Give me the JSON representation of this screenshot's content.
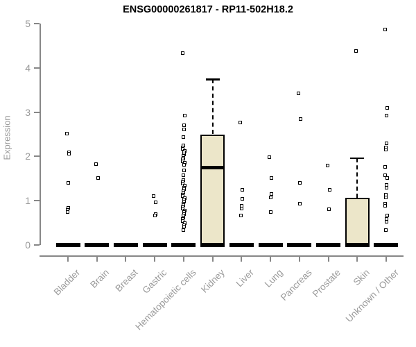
{
  "chart": {
    "title": "ENSG00000261817 - RP11-502H18.2",
    "ylabel": "Expression"
  },
  "chart_data": {
    "type": "boxplot",
    "title": "ENSG00000261817 - RP11-502H18.2",
    "xlabel": "",
    "ylabel": "Expression",
    "ylim": [
      0,
      5
    ],
    "yticks": [
      "0",
      "1",
      "2",
      "3",
      "4",
      "5"
    ],
    "grid": false,
    "marker": "open-square",
    "colors": {
      "box_fill": "#ECE6C9",
      "box_border": "#000000",
      "axis": "#878787",
      "tick_label": "#9a9a9a",
      "title": "#000000",
      "point": "#000000"
    },
    "categories": [
      {
        "label": "Bladder",
        "median": 0,
        "box": null,
        "points": [
          2.52,
          2.1,
          2.06,
          1.41,
          0.84,
          0.79,
          0.74
        ]
      },
      {
        "label": "Brain",
        "median": 0,
        "box": null,
        "points": [
          1.83,
          1.52
        ]
      },
      {
        "label": "Breast",
        "median": 0,
        "box": null,
        "points": []
      },
      {
        "label": "Gastric",
        "median": 0,
        "box": null,
        "points": [
          1.11,
          0.96,
          0.7,
          0.66
        ]
      },
      {
        "label": "Hematopoietic cells",
        "median": 0,
        "box": null,
        "points": [
          4.33,
          2.92,
          2.71,
          2.61,
          2.43,
          2.25,
          2.21,
          2.17,
          2.13,
          2.09,
          2.05,
          2.01,
          1.97,
          1.93,
          1.89,
          1.85,
          1.81,
          1.69,
          1.57,
          1.46,
          1.42,
          1.38,
          1.34,
          1.3,
          1.26,
          1.22,
          1.18,
          1.14,
          1.1,
          1.06,
          1.02,
          0.98,
          0.94,
          0.9,
          0.86,
          0.82,
          0.78,
          0.74,
          0.7,
          0.66,
          0.62,
          0.58,
          0.54,
          0.5,
          0.45,
          0.41,
          0.33
        ]
      },
      {
        "label": "Kidney",
        "median": 1.75,
        "box": {
          "q1": 0,
          "q3": 2.5,
          "whisker_high": 3.74
        },
        "points": []
      },
      {
        "label": "Liver",
        "median": 0,
        "box": null,
        "points": [
          2.76,
          1.24,
          1.05,
          0.89,
          0.82,
          0.67
        ]
      },
      {
        "label": "Lung",
        "median": 0,
        "box": null,
        "points": [
          1.98,
          1.52,
          1.15,
          1.08,
          0.75
        ]
      },
      {
        "label": "Pancreas",
        "median": 0,
        "box": null,
        "points": [
          3.42,
          2.85,
          1.41,
          0.94
        ]
      },
      {
        "label": "Prostate",
        "median": 0,
        "box": null,
        "points": [
          1.79,
          1.25,
          0.8
        ]
      },
      {
        "label": "Skin",
        "median": 0,
        "box": {
          "q1": 0,
          "q3": 1.07,
          "whisker_high": 1.96
        },
        "points": [
          4.38
        ]
      },
      {
        "label": "Unknown / Other",
        "median": 0,
        "box": null,
        "points": [
          4.86,
          3.1,
          2.92,
          2.29,
          2.21,
          2.15,
          1.77,
          1.58,
          1.51,
          1.36,
          1.3,
          1.13,
          1.08,
          0.94,
          0.88,
          0.66,
          0.58,
          0.52,
          0.33
        ]
      }
    ]
  }
}
